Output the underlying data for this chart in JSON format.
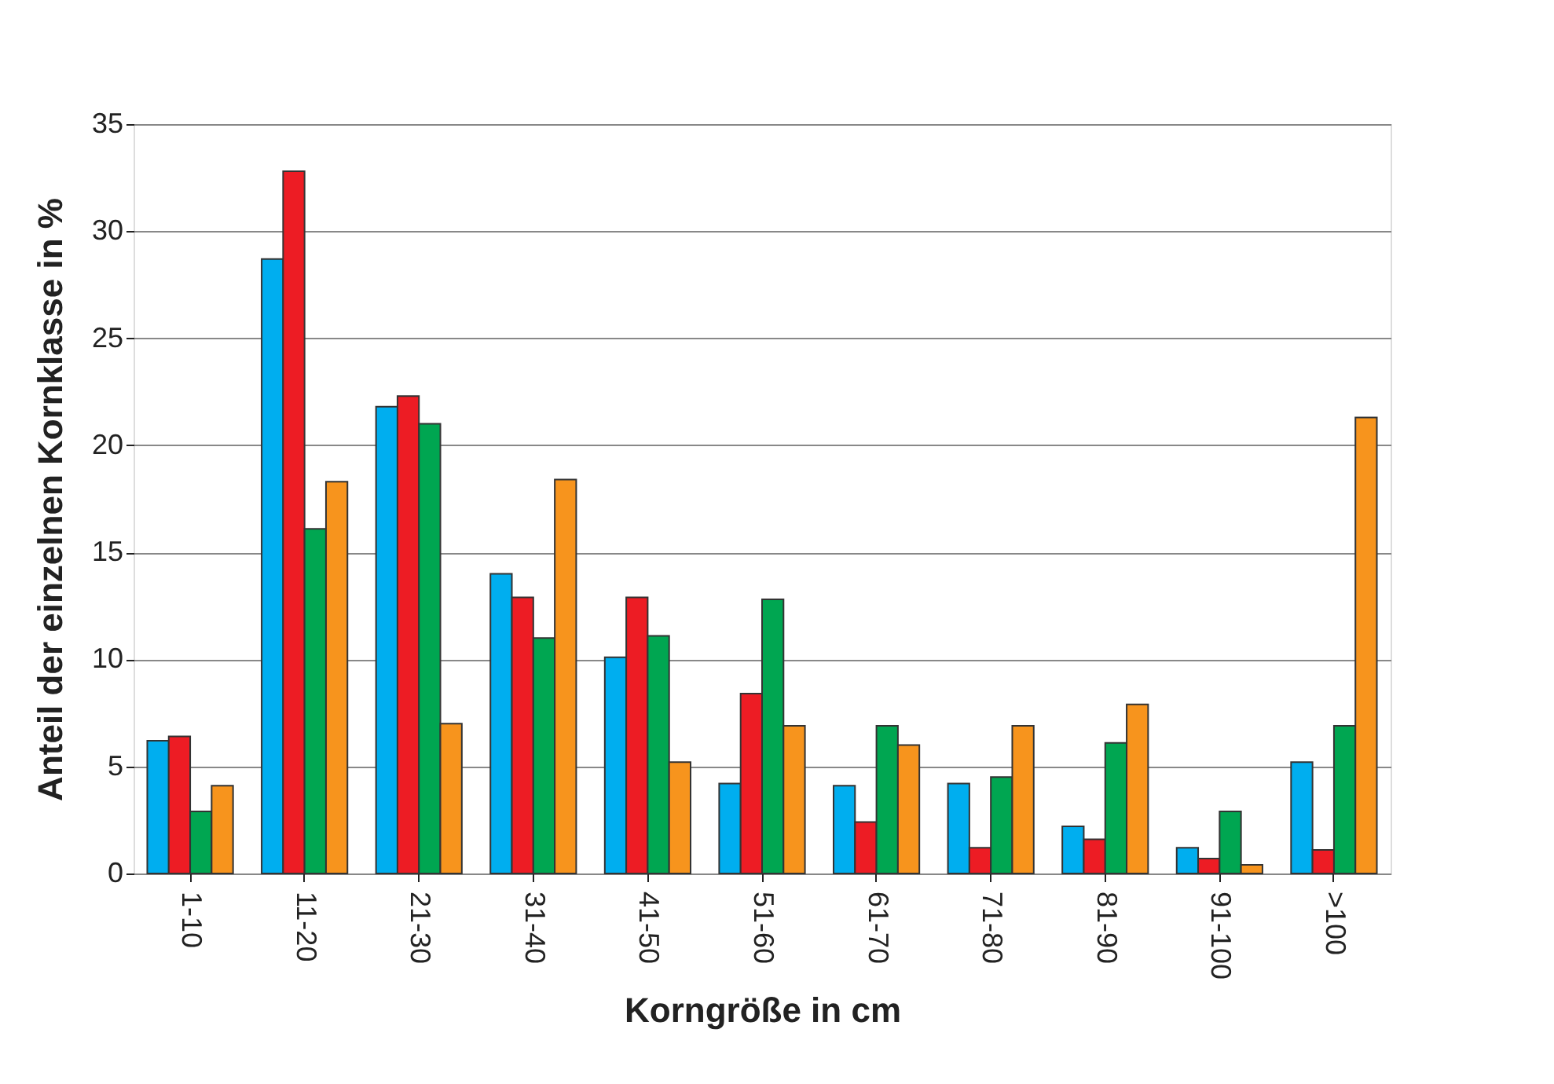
{
  "chart_data": {
    "type": "bar",
    "xlabel": "Korngröße in cm",
    "ylabel": "Anteil der einzelnen Kornklasse in %",
    "categories": [
      "1-10",
      "11-20",
      "21-30",
      "31-40",
      "41-50",
      "51-60",
      "61-70",
      "71-80",
      "81-90",
      "91-100",
      ">100"
    ],
    "series": [
      {
        "color": "#00aeef",
        "values": [
          6.2,
          28.7,
          21.8,
          14.0,
          10.1,
          4.2,
          4.1,
          4.2,
          2.2,
          1.2,
          5.2
        ]
      },
      {
        "color": "#ed1c24",
        "values": [
          6.4,
          32.8,
          22.3,
          12.9,
          12.9,
          8.4,
          2.4,
          1.2,
          1.6,
          0.7,
          1.1
        ]
      },
      {
        "color": "#00a651",
        "values": [
          2.9,
          16.1,
          21.0,
          11.0,
          11.1,
          12.8,
          6.9,
          4.5,
          6.1,
          2.9,
          6.9
        ]
      },
      {
        "color": "#f7941d",
        "values": [
          4.1,
          18.3,
          7.0,
          18.4,
          5.2,
          6.9,
          6.0,
          6.9,
          7.9,
          0.4,
          21.3
        ]
      }
    ],
    "ylim": [
      0,
      35
    ],
    "yticks": [
      0,
      5,
      10,
      15,
      20,
      25,
      30,
      35
    ],
    "grid": "y",
    "legend": false
  }
}
